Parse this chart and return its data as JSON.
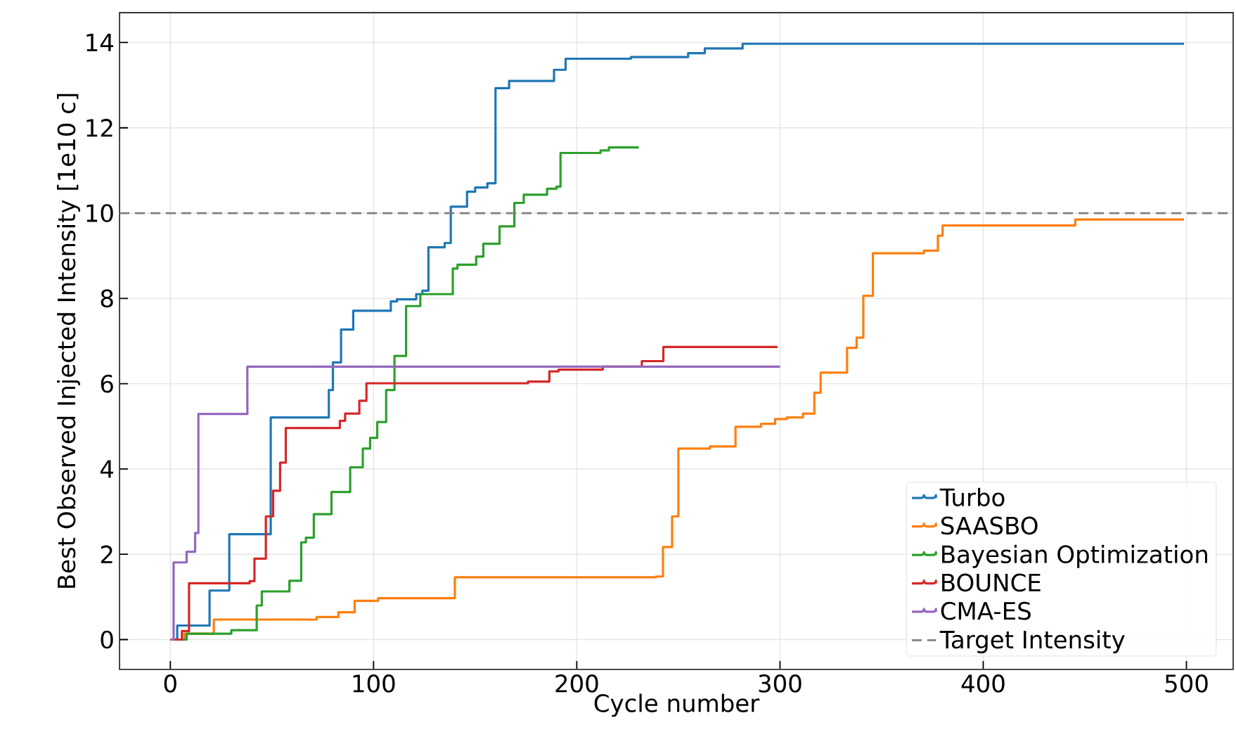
{
  "chart_data": {
    "type": "step",
    "xlabel": "Cycle number",
    "ylabel": "Best Observed Injected Intensity [1e10 c]",
    "xlim": [
      -25,
      523
    ],
    "ylim": [
      -0.7,
      14.7
    ],
    "xticks": [
      0,
      100,
      200,
      300,
      400,
      500
    ],
    "yticks": [
      0,
      2,
      4,
      6,
      8,
      10,
      12,
      14
    ],
    "grid": true,
    "legend": "bottom right",
    "series": [
      {
        "name": "Turbo",
        "color": "#1f77b4",
        "x": [
          0,
          3.4,
          19.3,
          29,
          49.4,
          78,
          80,
          84,
          90,
          108.5,
          111.5,
          121,
          124,
          127,
          135,
          138,
          146,
          150,
          156,
          160,
          166.7,
          188.8,
          194.5,
          226.6,
          254.8,
          263,
          281.6,
          498.8
        ],
        "values": [
          0,
          0.33,
          1.15,
          2.47,
          5.21,
          5.85,
          6.5,
          7.27,
          7.71,
          7.93,
          7.98,
          8.1,
          8.18,
          9.2,
          9.3,
          10.15,
          10.5,
          10.6,
          10.7,
          12.93,
          13.1,
          13.36,
          13.62,
          13.66,
          13.75,
          13.86,
          13.97,
          13.97
        ]
      },
      {
        "name": "SAASBO",
        "color": "#ff7f0e",
        "x": [
          0,
          6.9,
          21.4,
          72,
          82.7,
          90.7,
          102.2,
          140,
          238.9,
          242.4,
          246.9,
          250,
          265.5,
          278.1,
          290.7,
          297.6,
          303.3,
          311.3,
          316.9,
          320,
          333,
          337.7,
          341,
          345.7,
          370.8,
          377.7,
          380,
          445.3,
          498.8
        ],
        "values": [
          0,
          0.14,
          0.47,
          0.53,
          0.64,
          0.91,
          0.97,
          1.46,
          1.48,
          2.17,
          2.89,
          4.48,
          4.53,
          4.99,
          5.06,
          5.17,
          5.21,
          5.3,
          5.79,
          6.26,
          6.84,
          7.08,
          8.06,
          9.06,
          9.12,
          9.47,
          9.71,
          9.85,
          9.85
        ]
      },
      {
        "name": "Bayesian Optimization",
        "color": "#2ca02c",
        "x": [
          0,
          8,
          30,
          42.5,
          45,
          58.6,
          64.4,
          66.7,
          70.6,
          79.3,
          88.5,
          94.7,
          98.3,
          101.8,
          106.2,
          110.3,
          116,
          123,
          139,
          141.3,
          150.5,
          154,
          162,
          169.3,
          173.9,
          185.4,
          190,
          192,
          211.7,
          215.8,
          230.5
        ],
        "values": [
          0,
          0.14,
          0.22,
          0.8,
          1.13,
          1.38,
          2.28,
          2.39,
          2.94,
          3.46,
          4.04,
          4.48,
          4.73,
          5.1,
          5.85,
          6.65,
          7.82,
          8.1,
          8.7,
          8.79,
          8.98,
          9.28,
          9.69,
          10.24,
          10.43,
          10.57,
          10.62,
          11.41,
          11.47,
          11.54,
          11.54
        ]
      },
      {
        "name": "BOUNCE",
        "color": "#d62728",
        "x": [
          0,
          5.7,
          9.2,
          39,
          41.4,
          47,
          50.6,
          54,
          56.8,
          83.4,
          86,
          93,
          96.5,
          176,
          186.5,
          191,
          212.8,
          232,
          242.6,
          298.8
        ],
        "values": [
          0,
          0.2,
          1.32,
          1.37,
          1.9,
          2.89,
          3.49,
          4.15,
          4.96,
          5.13,
          5.3,
          5.6,
          6.01,
          6.05,
          6.29,
          6.33,
          6.4,
          6.53,
          6.86,
          6.86
        ]
      },
      {
        "name": "CMA-ES",
        "color": "#9467bd",
        "x": [
          0,
          1.6,
          8,
          12.2,
          13.8,
          37.9,
          300
        ],
        "values": [
          0,
          1.81,
          2.06,
          2.5,
          5.29,
          6.4,
          6.4
        ]
      }
    ],
    "ref_lines": [
      {
        "axis": "y",
        "value": 10,
        "label": "Target Intensity",
        "color": "#808080",
        "line_style": "dashed"
      }
    ]
  }
}
